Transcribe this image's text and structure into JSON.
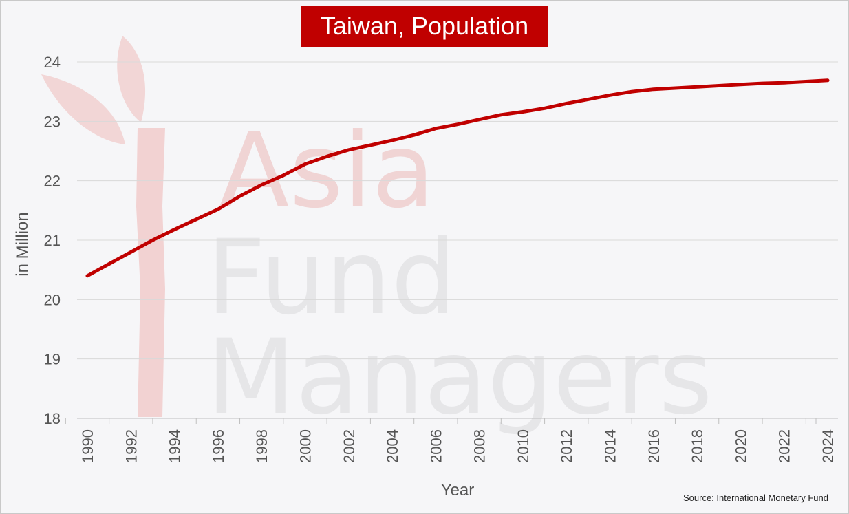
{
  "chart_data": {
    "type": "line",
    "title": "Taiwan, Population",
    "xlabel": "Year",
    "ylabel": "in Million",
    "ylim": [
      18,
      24
    ],
    "yticks": [
      18,
      19,
      20,
      21,
      22,
      23,
      24
    ],
    "xticks": [
      "1990",
      "1992",
      "1994",
      "1996",
      "1998",
      "2000",
      "2002",
      "2004",
      "2006",
      "2008",
      "2010",
      "2012",
      "2014",
      "2016",
      "2018",
      "2020",
      "2022",
      "2024"
    ],
    "x": [
      1990,
      1991,
      1992,
      1993,
      1994,
      1995,
      1996,
      1997,
      1998,
      1999,
      2000,
      2001,
      2002,
      2003,
      2004,
      2005,
      2006,
      2007,
      2008,
      2009,
      2010,
      2011,
      2012,
      2013,
      2014,
      2015,
      2016,
      2017,
      2018,
      2019,
      2020,
      2021,
      2022,
      2023,
      2024
    ],
    "series": [
      {
        "values": [
          20.4,
          20.6,
          20.8,
          21.0,
          21.18,
          21.35,
          21.52,
          21.74,
          21.93,
          22.09,
          22.28,
          22.41,
          22.52,
          22.6,
          22.68,
          22.77,
          22.88,
          22.95,
          23.03,
          23.11,
          23.16,
          23.22,
          23.3,
          23.37,
          23.44,
          23.5,
          23.54,
          23.56,
          23.58,
          23.6,
          23.62,
          23.64,
          23.65,
          23.67,
          23.69
        ]
      }
    ],
    "grid": true,
    "line_color": "#c00000",
    "accent_color": "#c00000",
    "source": "Source: International Monetary Fund",
    "watermark": "Asia Fund Managers"
  }
}
